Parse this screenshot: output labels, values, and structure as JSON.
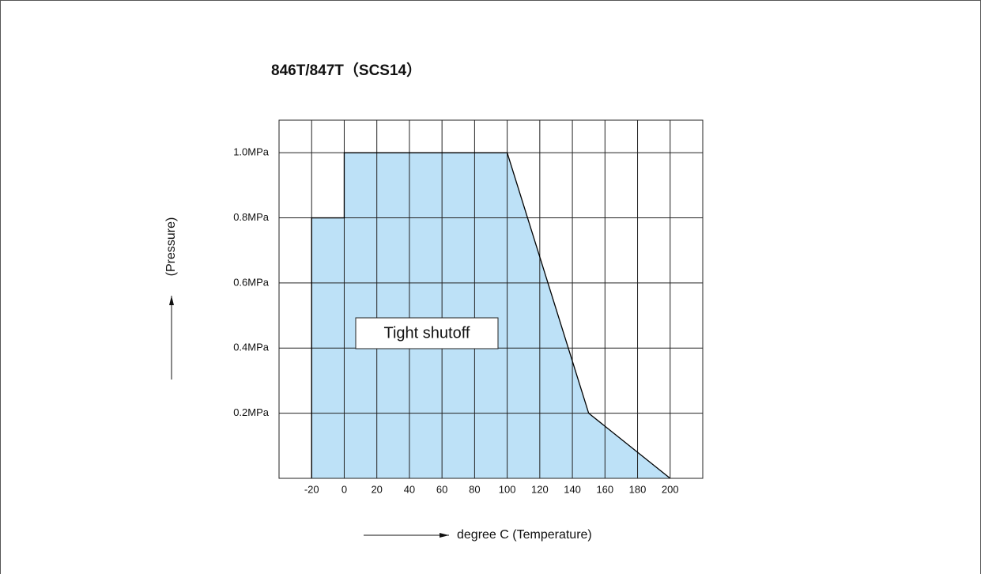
{
  "chart_data": {
    "type": "area",
    "title": "846T/847T（SCS14）",
    "x_label": "degree C (Temperature)",
    "y_label": "(Pressure)",
    "annotation": "Tight shutoff",
    "x": [
      -20,
      -20,
      0,
      0,
      100,
      150,
      200
    ],
    "values": [
      0,
      0.8,
      0.8,
      1.0,
      1.0,
      0.2,
      0
    ],
    "color": "#bde1f7",
    "xlim": [
      -40,
      220
    ],
    "xticks": [
      -20,
      0,
      20,
      40,
      60,
      80,
      100,
      120,
      140,
      160,
      180,
      200
    ],
    "ylim": [
      0,
      1.1
    ],
    "yticks": [
      {
        "value": 0.2,
        "label": "0.2MPa"
      },
      {
        "value": 0.4,
        "label": "0.4MPa"
      },
      {
        "value": 0.6,
        "label": "0.6MPa"
      },
      {
        "value": 0.8,
        "label": "0.8MPa"
      },
      {
        "value": 1.0,
        "label": "1.0MPa"
      }
    ],
    "grid": true
  }
}
